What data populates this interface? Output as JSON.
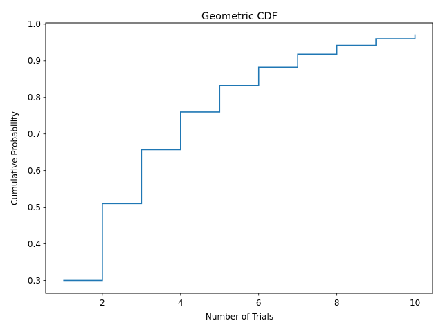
{
  "chart_data": {
    "type": "line",
    "step": "post",
    "title": "Geometric CDF",
    "xlabel": "Number of Trials",
    "ylabel": "Cumulative Probability",
    "xlim": [
      0.55,
      10.45
    ],
    "ylim": [
      0.265,
      1.0035
    ],
    "xticks": [
      2,
      4,
      6,
      8,
      10
    ],
    "xtick_labels": [
      "2",
      "4",
      "6",
      "8",
      "10"
    ],
    "yticks": [
      0.3,
      0.4,
      0.5,
      0.6,
      0.7,
      0.8,
      0.9,
      1.0
    ],
    "ytick_labels": [
      "0.3",
      "0.4",
      "0.5",
      "0.6",
      "0.7",
      "0.8",
      "0.9",
      "1.0"
    ],
    "grid": false,
    "series": [
      {
        "color": "#1f77b4",
        "x": [
          1,
          2,
          3,
          4,
          5,
          6,
          7,
          8,
          9,
          10
        ],
        "y": [
          0.3,
          0.51,
          0.657,
          0.76,
          0.832,
          0.882,
          0.918,
          0.942,
          0.96,
          0.972
        ]
      }
    ]
  }
}
